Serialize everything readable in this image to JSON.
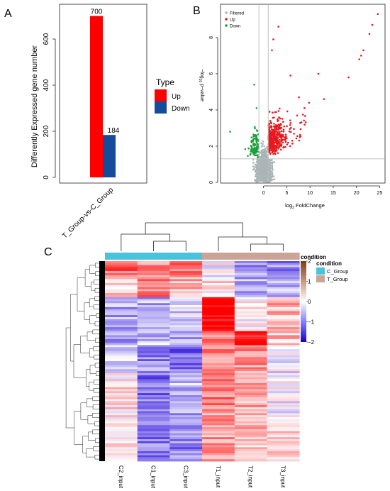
{
  "panel_labels": {
    "a": "A",
    "b": "B",
    "c": "C"
  },
  "chart_data": [
    {
      "panel": "A",
      "type": "bar",
      "title": "",
      "xlabel": "",
      "ylabel": "Differently Expressed gene number",
      "categories": [
        "T_Group-vs-C_Group"
      ],
      "series": [
        {
          "name": "Up",
          "values": [
            700
          ],
          "color": "#ff0000"
        },
        {
          "name": "Down",
          "values": [
            184
          ],
          "color": "#144b9a"
        }
      ],
      "data_labels": [
        "700",
        "184"
      ],
      "ylim": [
        0,
        740
      ],
      "yticks": [
        0,
        200,
        400,
        600
      ],
      "legend": {
        "title": "Type",
        "placement": "right",
        "items": [
          "Up",
          "Down"
        ]
      },
      "grid": false
    },
    {
      "panel": "B",
      "type": "scatter",
      "title": "",
      "xlabel": "log2 FoldChange",
      "ylabel": "-log10 p-value",
      "xlim": [
        -8.5,
        26
      ],
      "ylim": [
        0,
        9.8
      ],
      "xticks": [
        0,
        5,
        10,
        15,
        20,
        25
      ],
      "yticks": [
        0,
        2,
        4,
        6,
        8
      ],
      "thresholds": {
        "x": [
          -1,
          1
        ],
        "y": 1.3
      },
      "legend": {
        "placement": "top-left",
        "items": [
          {
            "name": "Filtered",
            "color": "#a9b5b7"
          },
          {
            "name": "Up",
            "color": "#e8191e"
          },
          {
            "name": "Down",
            "color": "#1c9e3c"
          }
        ]
      },
      "series": [
        {
          "name": "Filtered",
          "color": "#a9b5b7",
          "count_rendered": 900
        },
        {
          "name": "Up",
          "color": "#e8191e",
          "highlighted_points": [
            [
              24.6,
              9.3
            ],
            [
              23.4,
              8.7
            ],
            [
              22.8,
              8.2
            ],
            [
              21.5,
              7.3
            ],
            [
              21.0,
              7.0
            ],
            [
              20.6,
              6.8
            ],
            [
              18.3,
              5.8
            ],
            [
              13.0,
              4.6
            ],
            [
              11.8,
              6.0
            ],
            [
              9.8,
              4.4
            ],
            [
              8.8,
              4.1
            ],
            [
              7.6,
              4.7
            ],
            [
              5.8,
              5.9
            ],
            [
              3.2,
              8.6
            ],
            [
              2.1,
              7.9
            ],
            [
              1.8,
              7.3
            ]
          ],
          "count_rendered": 420
        },
        {
          "name": "Down",
          "color": "#1c9e3c",
          "highlighted_points": [
            [
              -2.0,
              5.4
            ],
            [
              -7.2,
              2.8
            ],
            [
              -1.5,
              4.1
            ]
          ],
          "count_rendered": 110
        }
      ],
      "grid": false
    },
    {
      "panel": "C",
      "type": "heatmap",
      "title": "",
      "columns": [
        "C2_input",
        "C1_input",
        "C3_input",
        "T1_input",
        "T2_input",
        "T3_input"
      ],
      "column_groups": [
        "C_Group",
        "C_Group",
        "C_Group",
        "T_Group",
        "T_Group",
        "T_Group"
      ],
      "annotation_title": "condition",
      "annotation_legend": [
        {
          "name": "C_Group",
          "color": "#49c3db"
        },
        {
          "name": "T_Group",
          "color": "#caa597"
        }
      ],
      "color_scale": {
        "min": -2,
        "max": 2,
        "ticks": [
          2,
          1,
          0,
          -1,
          -2
        ],
        "title": "condition",
        "colors": [
          "#2200dd",
          "#ffffff",
          "#e80000"
        ]
      },
      "row_count": 100,
      "blocks": [
        {
          "rows": 8,
          "values": [
            1.2,
            0.9,
            1.1,
            -0.1,
            -0.9,
            -0.9
          ]
        },
        {
          "rows": 10,
          "values": [
            0.3,
            1.0,
            0.6,
            0.2,
            -0.6,
            -0.7
          ]
        },
        {
          "rows": 17,
          "values": [
            -0.7,
            -0.6,
            -0.3,
            2.0,
            0.0,
            0.6
          ]
        },
        {
          "rows": 7,
          "values": [
            -0.8,
            -0.5,
            -0.7,
            0.9,
            1.6,
            0.5
          ]
        },
        {
          "rows": 14,
          "values": [
            -0.4,
            -0.9,
            -1.2,
            1.0,
            0.8,
            -0.2
          ]
        },
        {
          "rows": 20,
          "values": [
            0.2,
            -1.1,
            -0.6,
            1.0,
            0.7,
            -0.1
          ]
        },
        {
          "rows": 24,
          "values": [
            0.1,
            -1.1,
            -1.0,
            0.8,
            0.5,
            0.3
          ]
        }
      ]
    }
  ]
}
